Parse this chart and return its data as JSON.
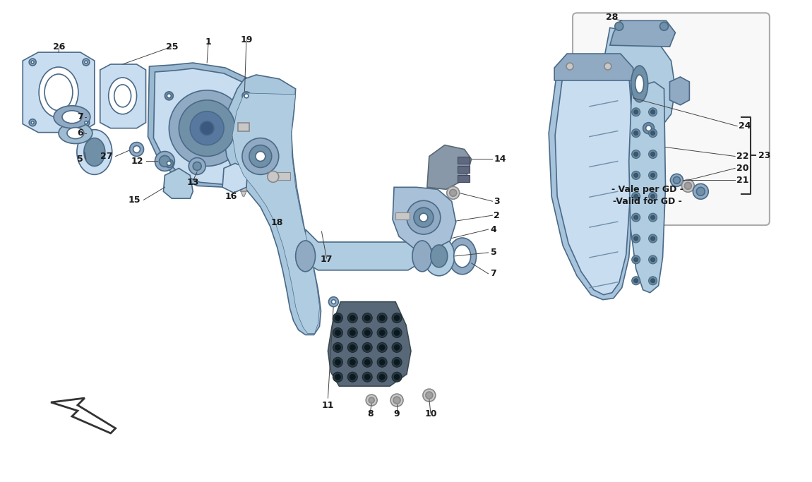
{
  "bg_color": "#ffffff",
  "part_color": "#b0cce0",
  "part_color2": "#90aac4",
  "part_color3": "#7090a8",
  "part_color4": "#c8ddf0",
  "edge_color": "#4a6a88",
  "metal_color": "#c8c8c8",
  "metal_edge": "#888888",
  "dark_pad": "#586878",
  "dark_pad_edge": "#3a4850",
  "connector_color": "#8898a8",
  "connector_edge": "#5a6870",
  "text_color": "#1a1a1a",
  "line_color": "#444444",
  "inset_bg": "#f8f8f8",
  "inset_edge": "#aaaaaa",
  "vale_line1": "- Vale per GD -",
  "vale_line2": "-Valid for GD -",
  "arrow_color": "#333333",
  "label_fontsize": 9
}
